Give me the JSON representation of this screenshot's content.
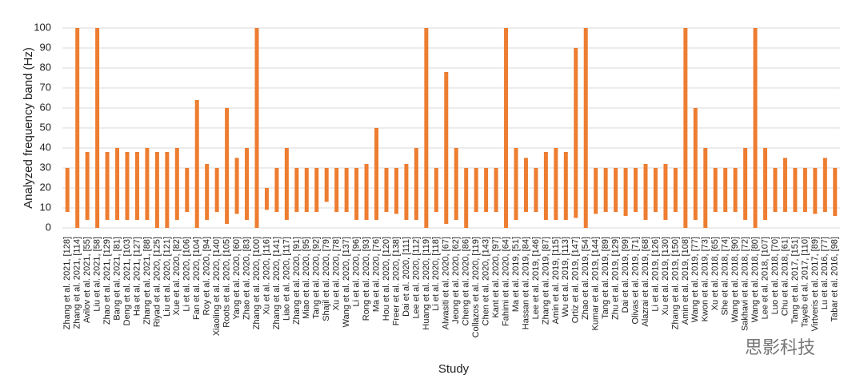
{
  "chart_data": {
    "type": "bar",
    "ylabel": "Analyzed frequency band (Hz)",
    "xlabel": "Study",
    "watermark": "思影科技",
    "color": "#ed7d31",
    "grid": true,
    "ylim": [
      0,
      100
    ],
    "yticks": [
      0,
      10,
      20,
      30,
      40,
      50,
      60,
      70,
      80,
      90,
      100
    ],
    "categories": [
      "Zhang et al. 2021, [128]",
      "Zhang et al. 2021, [114]",
      "Avilov et al. 2021, [55]",
      "Liu et al. 2021, [58]",
      "Zhao et al. 2021, [129]",
      "Bang et al. 2021, [81]",
      "Deng et al. 2021, [103]",
      "Ha et al. 2021, [127]",
      "Zhang et al. 2021, [88]",
      "Riyad et al. 2020, [125]",
      "Liu et al. 2020, [121]",
      "Xue et al. 2020, [82]",
      "Li et al. 2020, [106]",
      "Fan et al. 2020, [104]",
      "Roy et al. 2020, [94]",
      "Xiaoling et al. 2020, [140]",
      "Roots et al. 2020, [105]",
      "Yang et al. 2020, [60]",
      "Zhao et al. 2020, [83]",
      "Zhang et al. 2020, [100]",
      "Xu et al. 2020, [116]",
      "Zhang et al. 2020, [141]",
      "Liao et al. 2020, [117]",
      "Zhang et al. 2020, [91]",
      "Miao et al. 2020, [95]",
      "Tang et al. 2020, [92]",
      "Shajil et al. 2020, [79]",
      "Xu et al. 2020, [78]",
      "Wang et al. 2020, [137]",
      "Li et al. 2020, [96]",
      "Rong et al. 2020, [93]",
      "Ma et al. 2020, [76]",
      "Hou et al. 2020, [120]",
      "Freer et al. 2020, [138]",
      "Dai et al. 2020, [111]",
      "Lee et al. 2020, [112]",
      "Huang et al. 2020, [119]",
      "Li et al. 2020, [118]",
      "Alwasiti et al. 2020, [67]",
      "Jeong et al. 2020, [62]",
      "Cheng et al. 2020, [86]",
      "Collazos et al. 2020, [119]",
      "Chen et al. 2020, [143]",
      "Kant et al. 2020, [97]",
      "Fahimi et al. 2020, [64]",
      "Ma et al. 2019, [51]",
      "Hassan et al. 2019, [84]",
      "Lee et al. 2019, [146]",
      "Zhang et al. 2019, [87]",
      "Amin et al. 2019, [115]",
      "Wu et al. 2019, [113]",
      "Ortiz et al. 2019, [147]",
      "Zhao et al. 2019, [54]",
      "Kumar et al. 2019, [144]",
      "Tang et al. 2019, [89]",
      "Zhu et al. 2019, [129]",
      "Dai et al. 2019, [99]",
      "Olivas et al. 2019, [71]",
      "Alazrai et al. 2019, [68]",
      "Li et al. 2019, [126]",
      "Xu et al. 2019, [130]",
      "Zhang et al. 2019, [150]",
      "Amin et al. 2019, [108]",
      "Wang et al. 2019, [77]",
      "Kwon et al. 2019, [73]",
      "Xu et al. 2018, [65]",
      "She et al. 2018, [74]",
      "Wang et al. 2018, [90]",
      "Sakhavi et al. 2018, [72]",
      "Wang et al. 2018, [80]",
      "Lee et al. 2018, [107]",
      "Luo et al. 2018, [70]",
      "Chu et al. 2018, [61]",
      "Tang et al. 2017, [151]",
      "Tayeb et al. 2017, [110]",
      "Virtveris et al. 2017, [89]",
      "Lu et al. 2016, [77]",
      "Tabar et al. 2016, [98]"
    ],
    "ranges": [
      [
        8,
        30
      ],
      [
        0,
        100
      ],
      [
        4,
        38
      ],
      [
        0,
        100
      ],
      [
        4,
        38
      ],
      [
        4,
        40
      ],
      [
        4,
        38
      ],
      [
        4,
        38
      ],
      [
        4,
        40
      ],
      [
        0,
        38
      ],
      [
        0,
        38
      ],
      [
        4,
        40
      ],
      [
        8,
        30
      ],
      [
        0,
        64
      ],
      [
        4,
        32
      ],
      [
        8,
        30
      ],
      [
        2,
        60
      ],
      [
        7,
        35
      ],
      [
        4,
        40
      ],
      [
        0,
        100
      ],
      [
        9,
        20
      ],
      [
        8,
        30
      ],
      [
        4,
        40
      ],
      [
        8,
        30
      ],
      [
        8,
        30
      ],
      [
        8,
        30
      ],
      [
        13,
        30
      ],
      [
        8,
        30
      ],
      [
        8,
        30
      ],
      [
        4,
        30
      ],
      [
        4,
        32
      ],
      [
        4,
        50
      ],
      [
        8,
        30
      ],
      [
        7,
        30
      ],
      [
        4,
        32
      ],
      [
        4,
        40
      ],
      [
        0,
        100
      ],
      [
        8,
        30
      ],
      [
        2,
        78
      ],
      [
        4,
        40
      ],
      [
        0,
        30
      ],
      [
        8,
        30
      ],
      [
        8,
        30
      ],
      [
        8,
        30
      ],
      [
        0,
        100
      ],
      [
        4,
        40
      ],
      [
        8,
        35
      ],
      [
        8,
        30
      ],
      [
        4,
        38
      ],
      [
        4,
        40
      ],
      [
        4,
        38
      ],
      [
        5,
        90
      ],
      [
        0,
        100
      ],
      [
        7,
        30
      ],
      [
        8,
        30
      ],
      [
        8,
        30
      ],
      [
        6,
        30
      ],
      [
        8,
        30
      ],
      [
        4,
        32
      ],
      [
        8,
        30
      ],
      [
        4,
        32
      ],
      [
        8,
        30
      ],
      [
        0,
        100
      ],
      [
        4,
        60
      ],
      [
        0,
        40
      ],
      [
        8,
        30
      ],
      [
        8,
        30
      ],
      [
        8,
        30
      ],
      [
        4,
        40
      ],
      [
        0,
        100
      ],
      [
        4,
        40
      ],
      [
        8,
        30
      ],
      [
        8,
        35
      ],
      [
        8,
        30
      ],
      [
        8,
        30
      ],
      [
        7,
        30
      ],
      [
        8,
        35
      ],
      [
        6,
        30
      ]
    ]
  }
}
